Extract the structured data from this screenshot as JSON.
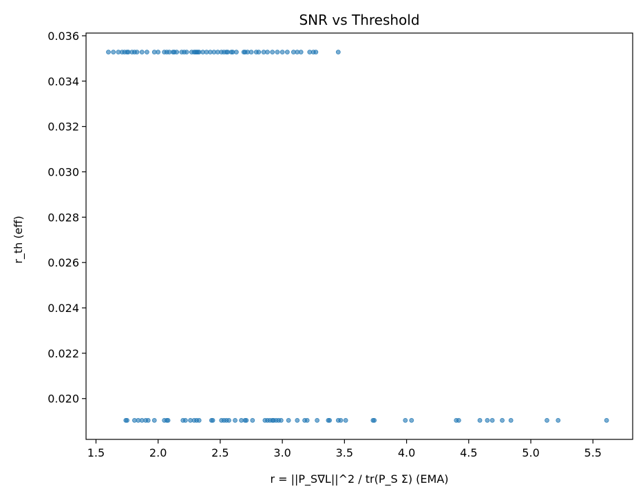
{
  "chart_data": {
    "type": "scatter",
    "title": "SNR vs Threshold",
    "xlabel": "r = ||P_S∇L||^2 / tr(P_S Σ) (EMA)",
    "ylabel": "r_th (eff)",
    "xlim": [
      1.42,
      5.82
    ],
    "ylim": [
      0.0182,
      0.03612
    ],
    "xticks": [
      1.5,
      2.0,
      2.5,
      3.0,
      3.5,
      4.0,
      4.5,
      5.0,
      5.5
    ],
    "xtick_labels": [
      "1.5",
      "2.0",
      "2.5",
      "3.0",
      "3.5",
      "4.0",
      "4.5",
      "5.0",
      "5.5"
    ],
    "yticks": [
      0.02,
      0.022,
      0.024,
      0.026,
      0.028,
      0.03,
      0.032,
      0.034,
      0.036
    ],
    "ytick_labels": [
      "0.020",
      "0.022",
      "0.024",
      "0.026",
      "0.028",
      "0.030",
      "0.032",
      "0.034",
      "0.036"
    ],
    "grid": false,
    "marker_color": "#1f77b4",
    "marker_alpha": 0.6,
    "series": [
      {
        "y": 0.03528,
        "x": [
          1.6,
          1.64,
          1.68,
          1.71,
          1.73,
          1.75,
          1.76,
          1.79,
          1.81,
          1.83,
          1.87,
          1.91,
          1.97,
          2.0,
          2.05,
          2.07,
          2.09,
          2.12,
          2.13,
          2.15,
          2.19,
          2.21,
          2.23,
          2.27,
          2.29,
          2.3,
          2.31,
          2.32,
          2.33,
          2.36,
          2.39,
          2.42,
          2.45,
          2.48,
          2.51,
          2.53,
          2.55,
          2.56,
          2.59,
          2.6,
          2.63,
          2.69,
          2.7,
          2.72,
          2.75,
          2.79,
          2.81,
          2.85,
          2.88,
          2.92,
          2.96,
          3.0,
          3.04,
          3.09,
          3.12,
          3.15,
          3.22,
          3.25,
          3.27,
          3.45
        ]
      },
      {
        "y": 0.01904,
        "x": [
          1.74,
          1.75,
          1.81,
          1.84,
          1.87,
          1.9,
          1.92,
          1.97,
          2.05,
          2.07,
          2.08,
          2.2,
          2.22,
          2.26,
          2.29,
          2.31,
          2.33,
          2.43,
          2.44,
          2.51,
          2.53,
          2.55,
          2.57,
          2.62,
          2.67,
          2.7,
          2.71,
          2.76,
          2.86,
          2.88,
          2.9,
          2.92,
          2.93,
          2.95,
          2.97,
          2.99,
          3.05,
          3.12,
          3.18,
          3.2,
          3.28,
          3.37,
          3.38,
          3.45,
          3.47,
          3.51,
          3.73,
          3.74,
          3.99,
          4.04,
          4.4,
          4.42,
          4.59,
          4.65,
          4.69,
          4.77,
          4.84,
          5.13,
          5.22,
          5.61
        ]
      }
    ]
  }
}
